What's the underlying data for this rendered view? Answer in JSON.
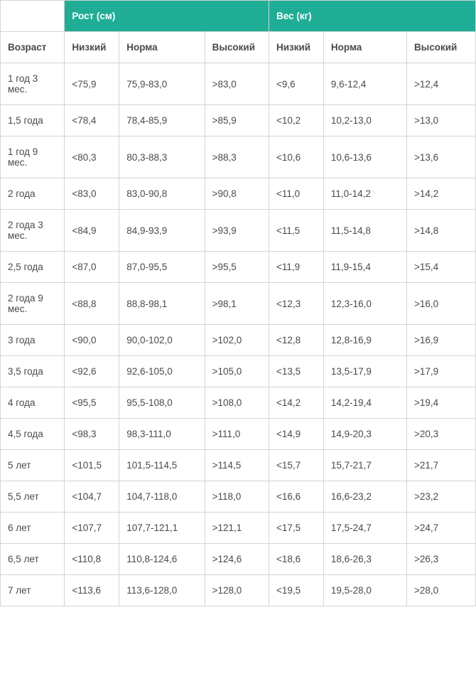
{
  "table": {
    "group_headers": [
      "Рост (см)",
      "Вес (кг)"
    ],
    "sub_headers": [
      "Возраст",
      "Низкий",
      "Норма",
      "Высокий",
      "Низкий",
      "Норма",
      "Высокий"
    ],
    "rows": [
      [
        "1 год 3 мес.",
        "<75,9",
        "75,9-83,0",
        ">83,0",
        "<9,6",
        "9,6-12,4",
        ">12,4"
      ],
      [
        "1,5 года",
        "<78,4",
        "78,4-85,9",
        ">85,9",
        "<10,2",
        "10,2-13,0",
        ">13,0"
      ],
      [
        "1 год 9 мес.",
        "<80,3",
        "80,3-88,3",
        ">88,3",
        "<10,6",
        "10,6-13,6",
        ">13,6"
      ],
      [
        "2 года",
        "<83,0",
        "83,0-90,8",
        ">90,8",
        "<11,0",
        "11,0-14,2",
        ">14,2"
      ],
      [
        "2 года 3 мес.",
        "<84,9",
        "84,9-93,9",
        ">93,9",
        "<11,5",
        "11,5-14,8",
        ">14,8"
      ],
      [
        "2,5 года",
        "<87,0",
        "87,0-95,5",
        ">95,5",
        "<11,9",
        "11,9-15,4",
        ">15,4"
      ],
      [
        "2 года 9 мес.",
        "<88,8",
        "88,8-98,1",
        ">98,1",
        "<12,3",
        "12,3-16,0",
        ">16,0"
      ],
      [
        "3 года",
        "<90,0",
        "90,0-102,0",
        ">102,0",
        "<12,8",
        "12,8-16,9",
        ">16,9"
      ],
      [
        "3,5 года",
        "<92,6",
        "92,6-105,0",
        ">105,0",
        "<13,5",
        "13,5-17,9",
        ">17,9"
      ],
      [
        "4 года",
        "<95,5",
        "95,5-108,0",
        ">108,0",
        "<14,2",
        "14,2-19,4",
        ">19,4"
      ],
      [
        "4,5 года",
        "<98,3",
        "98,3-111,0",
        ">111,0",
        "<14,9",
        "14,9-20,3",
        ">20,3"
      ],
      [
        "5 лет",
        "<101,5",
        "101,5-114,5",
        ">114,5",
        "<15,7",
        "15,7-21,7",
        ">21,7"
      ],
      [
        "5,5 лет",
        "<104,7",
        "104,7-118,0",
        ">118,0",
        "<16,6",
        "16,6-23,2",
        ">23,2"
      ],
      [
        "6 лет",
        "<107,7",
        "107,7-121,1",
        ">121,1",
        "<17,5",
        "17,5-24,7",
        ">24,7"
      ],
      [
        "6,5 лет",
        "<110,8",
        "110,8-124,6",
        ">124,6",
        "<18,6",
        "18,6-26,3",
        ">26,3"
      ],
      [
        "7 лет",
        "<113,6",
        "113,6-128,0",
        ">128,0",
        "<19,5",
        "19,5-28,0",
        ">28,0"
      ]
    ],
    "colors": {
      "header_bg": "#20ad96",
      "header_text": "#ffffff",
      "border": "#d4d4d4",
      "text": "#4a4a4a",
      "background": "#ffffff"
    }
  }
}
